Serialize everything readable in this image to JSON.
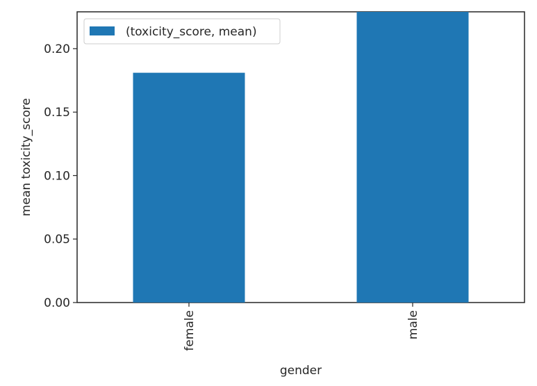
{
  "chart_data": {
    "type": "bar",
    "categories": [
      "female",
      "male"
    ],
    "series": [
      {
        "name": "(toxicity_score, mean)",
        "values": [
          0.181,
          0.229
        ],
        "color": "#1f77b4"
      }
    ],
    "xlabel": "gender",
    "ylabel": "mean toxicity_score",
    "ylim": [
      0,
      0.229
    ],
    "yticks": [
      0.0,
      0.05,
      0.1,
      0.15,
      0.2
    ],
    "ytick_labels": [
      "0.00",
      "0.05",
      "0.10",
      "0.15",
      "0.20"
    ],
    "legend": "top-left",
    "grid": false
  }
}
